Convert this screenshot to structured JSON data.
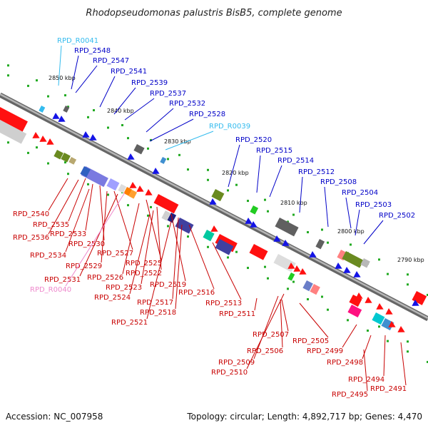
{
  "title": "Rhodopseudomonas palustris BisB5, complete genome",
  "footer": {
    "accession": "Accession: NC_007958",
    "topology": "Topology: circular; Length: 4,892,717 bp; Genes: 4,470"
  },
  "colors": {
    "background": "#ffffff",
    "backbone": "#8c8c8c",
    "forward_label": "#0000c8",
    "reverse_label": "#c80000",
    "rna_forward_label": "#33bbee",
    "rna_reverse_label": "#ee88cc",
    "gc_dots": "#22aa22"
  },
  "scale_labels": [
    "2850 kbp",
    "2840 kbp",
    "2830 kbp",
    "2820 kbp",
    "2810 kbp",
    "2800 kbp",
    "2790 kbp"
  ],
  "forward_genes": [
    "RPD_R0041",
    "RPD_2548",
    "RPD_2547",
    "RPD_2541",
    "RPD_2539",
    "RPD_2537",
    "RPD_2532",
    "RPD_2528",
    "RPD_R0039",
    "RPD_2520",
    "RPD_2515",
    "RPD_2514",
    "RPD_2512",
    "RPD_2508",
    "RPD_2504",
    "RPD_2503",
    "RPD_2502"
  ],
  "reverse_genes": [
    "RPD_2540",
    "RPD_2535",
    "RPD_2536",
    "RPD_2533",
    "RPD_2530",
    "RPD_2534",
    "RPD_2527",
    "RPD_2529",
    "RPD_2525",
    "RPD_2531",
    "RPD_2526",
    "RPD_2522",
    "RPD_R0040",
    "RPD_2523",
    "RPD_2519",
    "RPD_2524",
    "RPD_2517",
    "RPD_2516",
    "RPD_2518",
    "RPD_2513",
    "RPD_2521",
    "RPD_2511",
    "RPD_2507",
    "RPD_2505",
    "RPD_2506",
    "RPD_2499",
    "RPD_2509",
    "RPD_2498",
    "RPD_2510",
    "RPD_2494",
    "RPD_2495",
    "RPD_2491"
  ]
}
